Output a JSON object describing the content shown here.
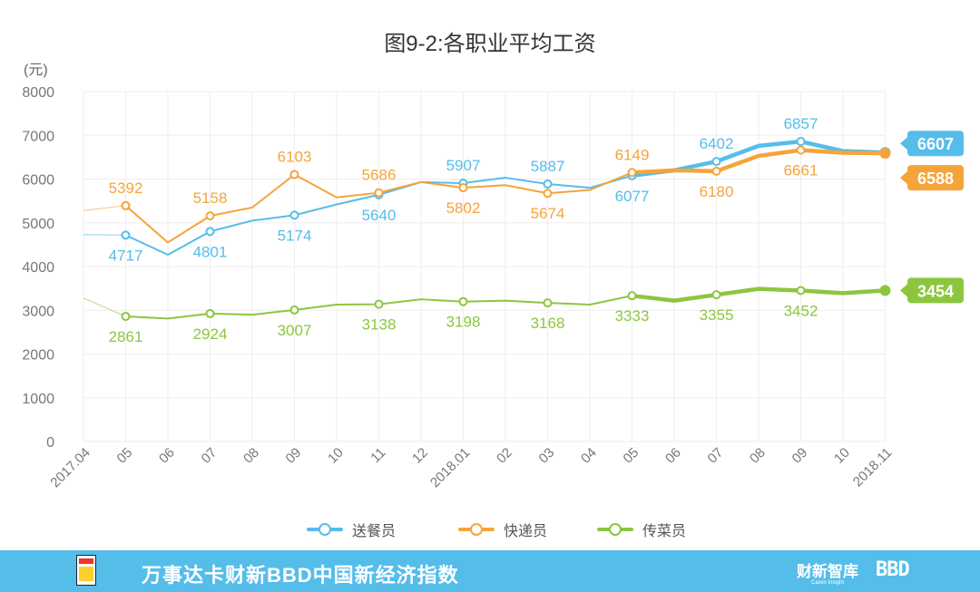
{
  "chart_data": {
    "type": "line",
    "title": "图9-2:各职业平均工资",
    "ylabel": "(元)",
    "ylim": [
      0,
      8000
    ],
    "yticks": [
      "8000",
      "7000",
      "6000",
      "5000",
      "4000",
      "3000",
      "2000",
      "1000",
      "0"
    ],
    "grid": true,
    "legend_position": "bottom",
    "categories": [
      "2017.04",
      "05",
      "06",
      "07",
      "08",
      "09",
      "10",
      "11",
      "12",
      "2018.01",
      "02",
      "03",
      "04",
      "05",
      "06",
      "07",
      "08",
      "09",
      "10",
      "2018.11"
    ],
    "series": [
      {
        "name": "送餐员",
        "color": "#55bdea",
        "values": [
          4730,
          4717,
          4270,
          4801,
          5050,
          5174,
          5420,
          5640,
          5930,
          5907,
          6030,
          5887,
          5800,
          6077,
          6200,
          6402,
          6760,
          6857,
          6640,
          6607
        ],
        "labeled": [
          [
            1,
            "4717",
            "below"
          ],
          [
            3,
            "4801",
            "below"
          ],
          [
            5,
            "5174",
            "below"
          ],
          [
            7,
            "5640",
            "below"
          ],
          [
            9,
            "5907",
            "above"
          ],
          [
            11,
            "5887",
            "above"
          ],
          [
            13,
            "6077",
            "below"
          ],
          [
            15,
            "6402",
            "above"
          ],
          [
            17,
            "6857",
            "above"
          ]
        ],
        "end_label": "6607"
      },
      {
        "name": "快递员",
        "color": "#f5a43a",
        "values": [
          5280,
          5392,
          4550,
          5158,
          5350,
          6103,
          5580,
          5686,
          5930,
          5802,
          5860,
          5674,
          5750,
          6149,
          6200,
          6180,
          6530,
          6661,
          6600,
          6588
        ],
        "labeled": [
          [
            1,
            "5392",
            "above"
          ],
          [
            3,
            "5158",
            "above"
          ],
          [
            5,
            "6103",
            "above"
          ],
          [
            7,
            "5686",
            "above"
          ],
          [
            9,
            "5802",
            "below"
          ],
          [
            11,
            "5674",
            "below"
          ],
          [
            13,
            "6149",
            "above"
          ],
          [
            15,
            "6180",
            "below"
          ],
          [
            17,
            "6661",
            "below"
          ]
        ],
        "end_label": "6588"
      },
      {
        "name": "传菜员",
        "color": "#8cc63f",
        "values": [
          3280,
          2861,
          2810,
          2924,
          2900,
          3007,
          3130,
          3138,
          3250,
          3198,
          3220,
          3168,
          3130,
          3333,
          3220,
          3355,
          3490,
          3452,
          3390,
          3454
        ],
        "labeled": [
          [
            1,
            "2861",
            "below"
          ],
          [
            3,
            "2924",
            "below"
          ],
          [
            5,
            "3007",
            "below"
          ],
          [
            7,
            "3138",
            "below"
          ],
          [
            9,
            "3198",
            "below"
          ],
          [
            11,
            "3168",
            "below"
          ],
          [
            13,
            "3333",
            "below"
          ],
          [
            15,
            "3355",
            "below"
          ],
          [
            17,
            "3452",
            "below"
          ]
        ],
        "end_label": "3454"
      }
    ]
  },
  "footer": {
    "text": "万事达卡财新BBD中国新经济指数",
    "brand1": "财新智库",
    "brand1_sub": "Caixin Insight",
    "brand2": "BBD"
  }
}
